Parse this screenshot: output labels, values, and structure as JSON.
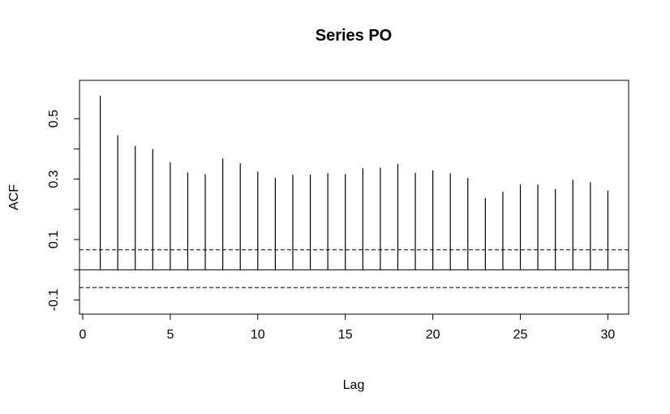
{
  "chart_data": {
    "type": "bar",
    "title": "Series  PO",
    "xlabel": "Lag",
    "ylabel": "ACF",
    "xlim": [
      0,
      31
    ],
    "ylim": [
      -0.12,
      0.6
    ],
    "x_ticks": [
      0,
      5,
      10,
      15,
      20,
      25,
      30
    ],
    "y_ticks": [
      -0.1,
      0.1,
      0.3,
      0.5
    ],
    "y_tick_labels": [
      "-0.1",
      "0.1",
      "0.3",
      "0.5"
    ],
    "confidence_bounds": [
      0.066,
      -0.059
    ],
    "lags": [
      1,
      2,
      3,
      4,
      5,
      6,
      7,
      8,
      9,
      10,
      11,
      12,
      13,
      14,
      15,
      16,
      17,
      18,
      19,
      20,
      21,
      22,
      23,
      24,
      25,
      26,
      27,
      28,
      29,
      30
    ],
    "values": [
      0.576,
      0.445,
      0.41,
      0.4,
      0.356,
      0.322,
      0.316,
      0.368,
      0.352,
      0.325,
      0.304,
      0.315,
      0.315,
      0.32,
      0.317,
      0.336,
      0.338,
      0.35,
      0.321,
      0.329,
      0.319,
      0.304,
      0.238,
      0.258,
      0.282,
      0.282,
      0.267,
      0.298,
      0.29,
      0.262
    ],
    "grid": false
  },
  "colors": {
    "line": "#000000",
    "background": "#ffffff"
  }
}
